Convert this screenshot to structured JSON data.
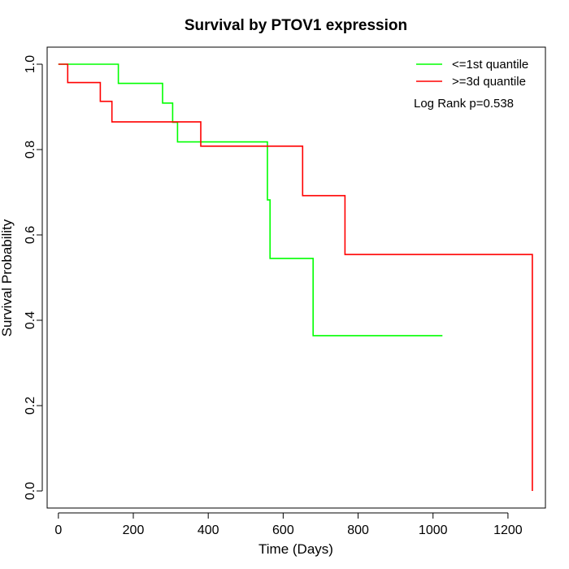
{
  "chart_data": {
    "type": "line",
    "subtype": "kaplan-meier step",
    "title": "Survival by PTOV1 expression",
    "xlabel": "Time (Days)",
    "ylabel": "Survival Probability",
    "xlim": [
      -30,
      1300
    ],
    "ylim": [
      -0.04,
      1.04
    ],
    "xticks": [
      0,
      200,
      400,
      600,
      800,
      1000,
      1200
    ],
    "yticks": [
      0.0,
      0.2,
      0.4,
      0.6,
      0.8,
      1.0
    ],
    "xtick_labels": [
      "0",
      "200",
      "400",
      "600",
      "800",
      "1000",
      "1200"
    ],
    "ytick_labels": [
      "0.0",
      "0.2",
      "0.4",
      "0.6",
      "0.8",
      "1.0"
    ],
    "grid": false,
    "legend_position": "top-right",
    "annotation": "Log Rank p=0.538",
    "series": [
      {
        "name": "<=1st quantile",
        "color": "#00ff00",
        "x": [
          0,
          160,
          278,
          305,
          318,
          558,
          565,
          680,
          1025
        ],
        "y": [
          1.0,
          0.955,
          0.909,
          0.864,
          0.818,
          0.682,
          0.545,
          0.364,
          0.364
        ]
      },
      {
        "name": ">=3d quantile",
        "color": "#ff0000",
        "x": [
          0,
          25,
          112,
          143,
          380,
          652,
          765,
          1265,
          1265
        ],
        "y": [
          1.0,
          0.957,
          0.913,
          0.865,
          0.808,
          0.692,
          0.554,
          0.554,
          0.0
        ]
      }
    ]
  }
}
